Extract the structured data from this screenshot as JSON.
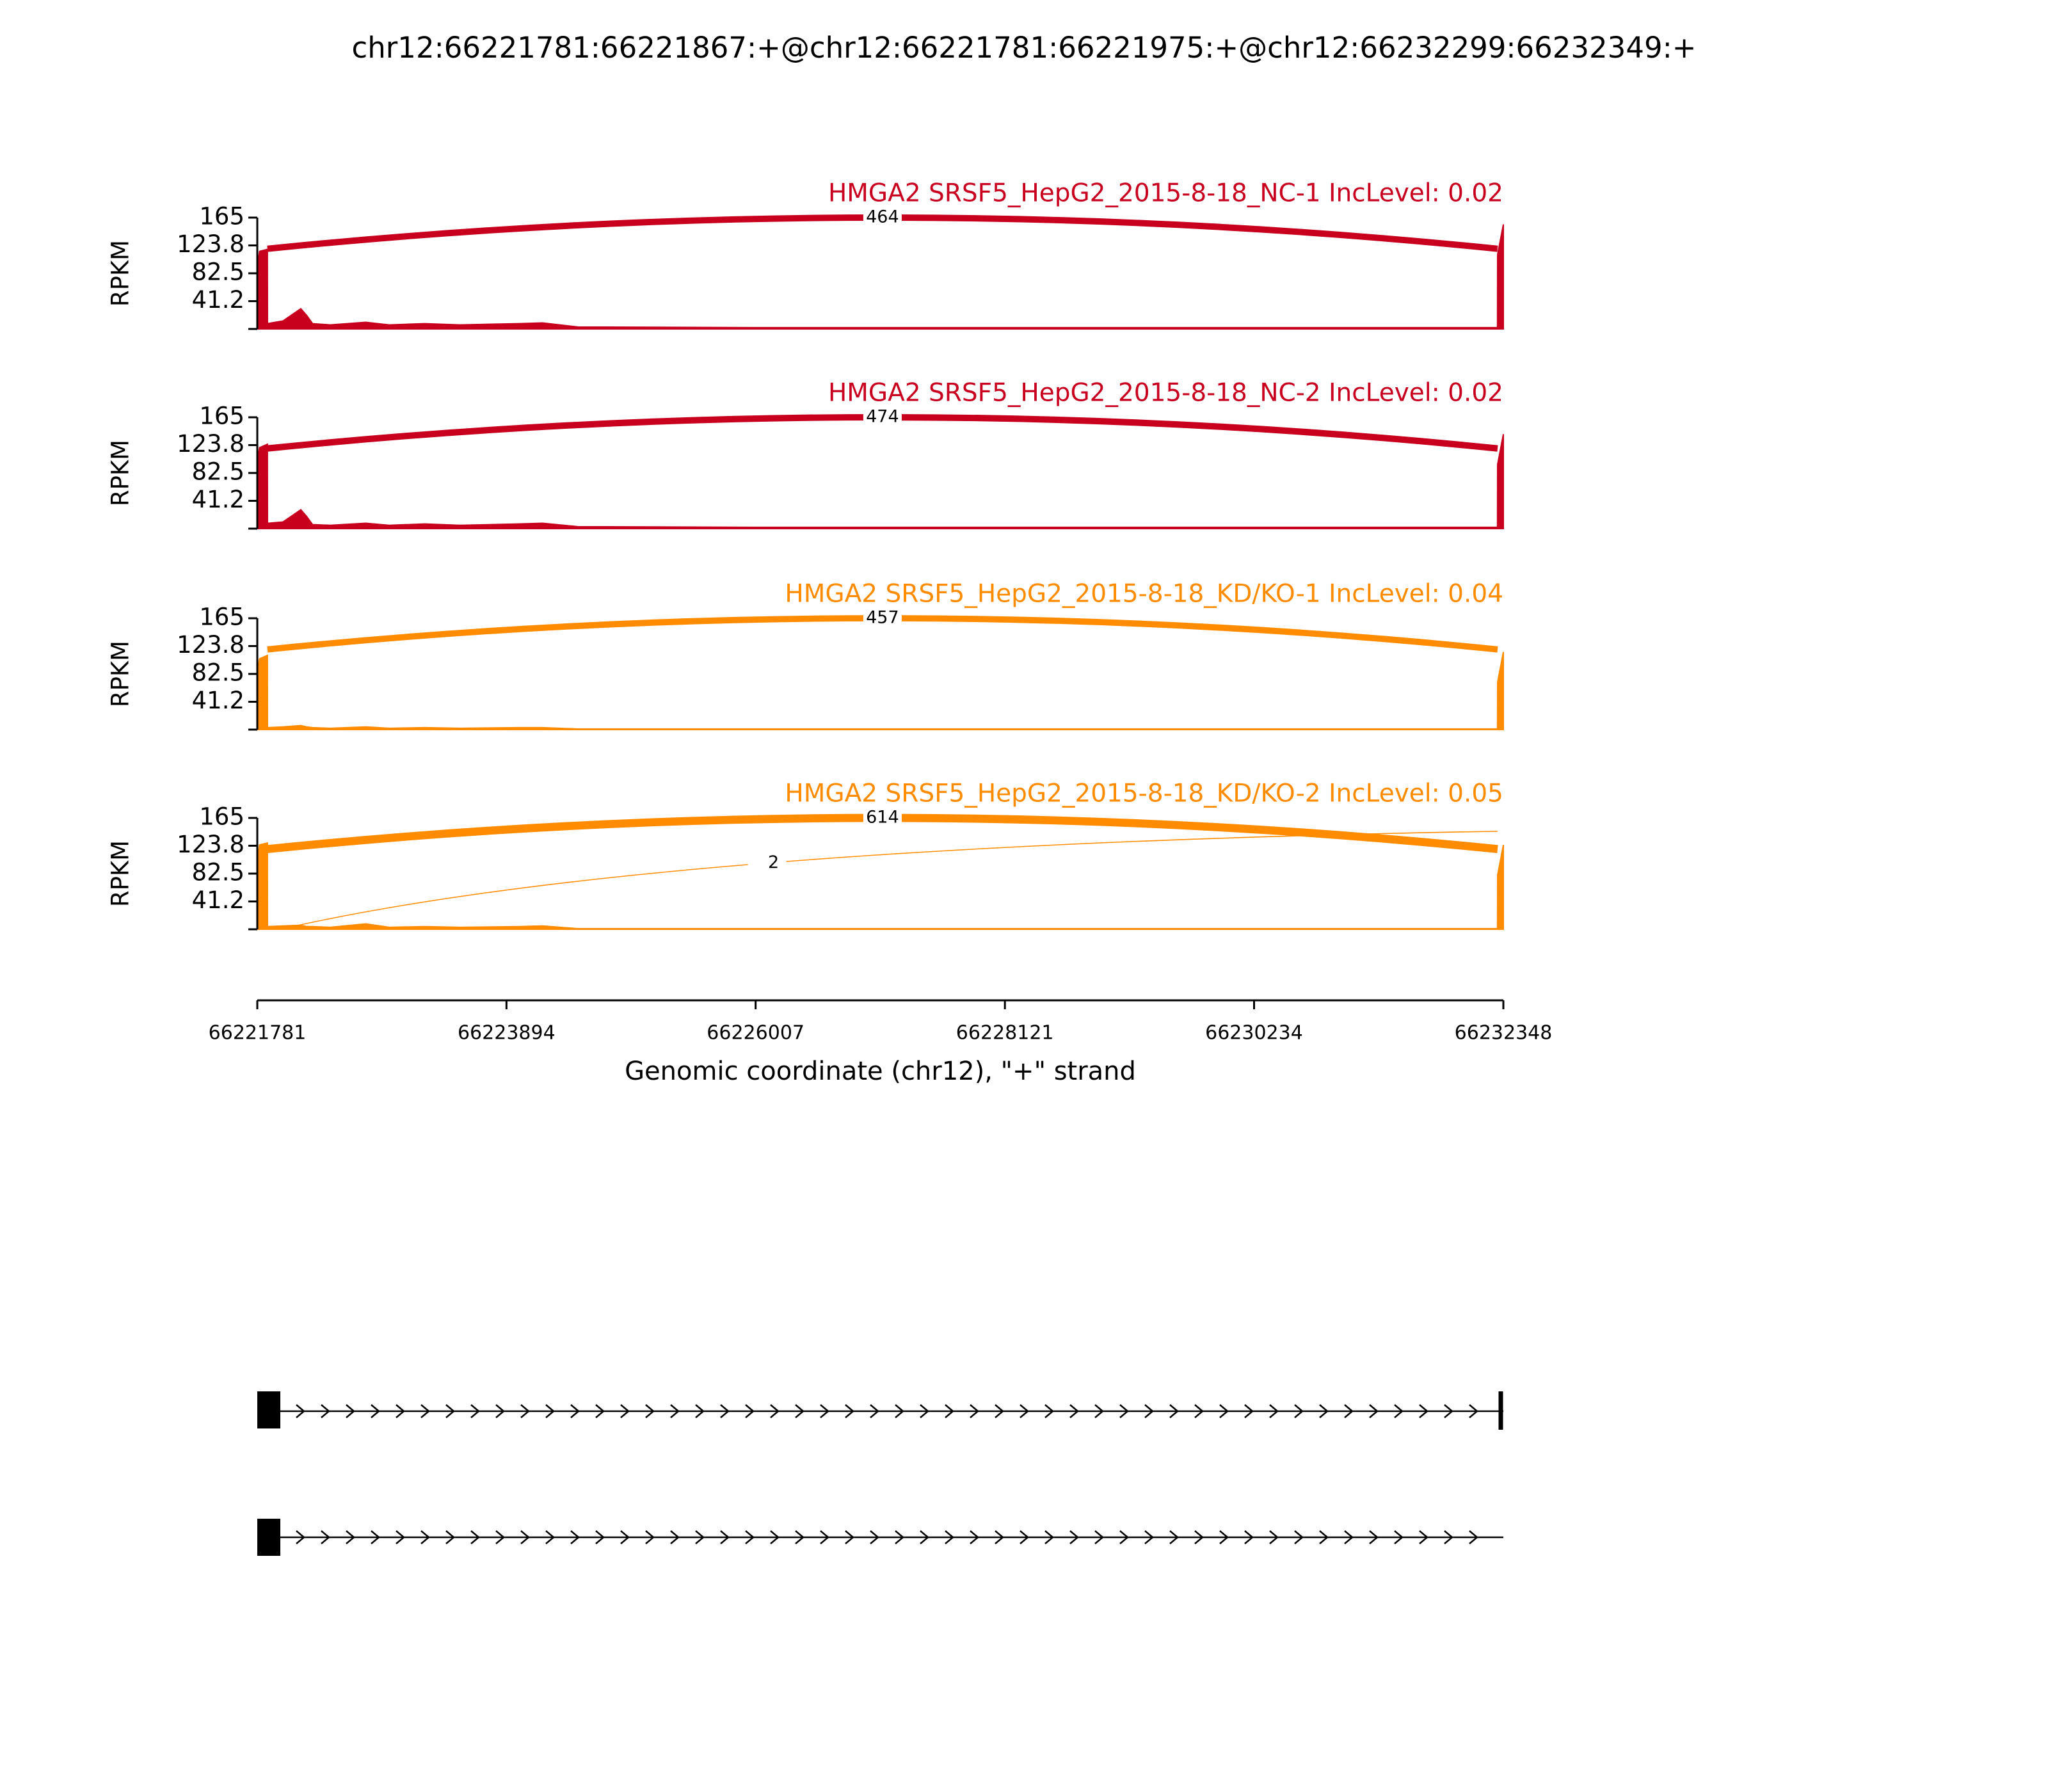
{
  "title": "chr12:66221781:66221867:+@chr12:66221781:66221975:+@chr12:66232299:66232349:+",
  "x_axis": {
    "xlim": [
      66221781,
      66232348
    ],
    "xticks": [
      66221781,
      66223894,
      66226007,
      66228121,
      66230234,
      66232348
    ],
    "xlabel": "Genomic coordinate (chr12), \"+\" strand"
  },
  "chart_data": [
    {
      "type": "area",
      "ylabel": "RPKM",
      "ylim": [
        0,
        165
      ],
      "yticks": [
        41.2,
        82.5,
        123.8,
        165
      ],
      "x": [
        66221781,
        66221800,
        66221867,
        66221868,
        66222000,
        66222150,
        66222200,
        66222250,
        66222400,
        66222700,
        66222900,
        66223200,
        66223500,
        66224000,
        66224200,
        66224500,
        66226000,
        66228000,
        66230000,
        66232000,
        66232298,
        66232299,
        66232348
      ],
      "series": [
        {
          "name": "HMGA2 SRSF5_HepG2_2015-8-18_NC-1 IncLevel: 0.02",
          "color": "#c8001e",
          "values": [
            90,
            115,
            118,
            8,
            12,
            30,
            20,
            8,
            6,
            10,
            6,
            8,
            6,
            8,
            9,
            3,
            2,
            2,
            2,
            2,
            2,
            110,
            155
          ]
        }
      ],
      "junctions": [
        {
          "start": 66221867,
          "end": 66232299,
          "count": 464
        }
      ]
    },
    {
      "type": "area",
      "ylabel": "RPKM",
      "ylim": [
        0,
        165
      ],
      "yticks": [
        41.2,
        82.5,
        123.8,
        165
      ],
      "x": [
        66221781,
        66221800,
        66221867,
        66221868,
        66222000,
        66222150,
        66222200,
        66222250,
        66222400,
        66222700,
        66222900,
        66223200,
        66223500,
        66224000,
        66224200,
        66224500,
        66226000,
        66228000,
        66230000,
        66232000,
        66232298,
        66232299,
        66232348
      ],
      "series": [
        {
          "name": "HMGA2 SRSF5_HepG2_2015-8-18_NC-2 IncLevel: 0.02",
          "color": "#c8001e",
          "values": [
            100,
            120,
            125,
            8,
            10,
            28,
            18,
            6,
            5,
            8,
            5,
            7,
            5,
            7,
            8,
            3,
            2,
            2,
            2,
            2,
            2,
            95,
            140
          ]
        }
      ],
      "junctions": [
        {
          "start": 66221867,
          "end": 66232299,
          "count": 474
        }
      ]
    },
    {
      "type": "area",
      "ylabel": "RPKM",
      "ylim": [
        0,
        165
      ],
      "yticks": [
        41.2,
        82.5,
        123.8,
        165
      ],
      "x": [
        66221781,
        66221800,
        66221867,
        66221868,
        66222000,
        66222150,
        66222200,
        66222250,
        66222400,
        66222700,
        66222900,
        66223200,
        66223500,
        66224000,
        66224200,
        66224500,
        66226000,
        66228000,
        66230000,
        66232000,
        66232298,
        66232299,
        66232348
      ],
      "series": [
        {
          "name": "HMGA2 SRSF5_HepG2_2015-8-18_KD/KO-1 IncLevel: 0.04",
          "color": "#ff8c00",
          "values": [
            85,
            105,
            110,
            3,
            4,
            6,
            4,
            3,
            2,
            4,
            2,
            3,
            2,
            3,
            3,
            1,
            1,
            1,
            1,
            1,
            1,
            70,
            115
          ]
        }
      ],
      "junctions": [
        {
          "start": 66221867,
          "end": 66232299,
          "count": 457
        }
      ]
    },
    {
      "type": "area",
      "ylabel": "RPKM",
      "ylim": [
        0,
        165
      ],
      "yticks": [
        41.2,
        82.5,
        123.8,
        165
      ],
      "x": [
        66221781,
        66221800,
        66221867,
        66221868,
        66222000,
        66222150,
        66222200,
        66222250,
        66222400,
        66222700,
        66222900,
        66223200,
        66223500,
        66224000,
        66224200,
        66224500,
        66226000,
        66228000,
        66230000,
        66232000,
        66232298,
        66232299,
        66232348
      ],
      "series": [
        {
          "name": "HMGA2 SRSF5_HepG2_2015-8-18_KD/KO-2 IncLevel: 0.05",
          "color": "#ff8c00",
          "values": [
            100,
            125,
            128,
            4,
            5,
            6,
            4,
            4,
            3,
            8,
            3,
            4,
            3,
            4,
            5,
            1,
            1,
            1,
            1,
            1,
            1,
            80,
            125
          ]
        }
      ],
      "junctions": [
        {
          "start": 66221867,
          "end": 66232299,
          "count": 614
        },
        {
          "start": 66221975,
          "end": 66232299,
          "count": 2
        }
      ]
    }
  ]
}
